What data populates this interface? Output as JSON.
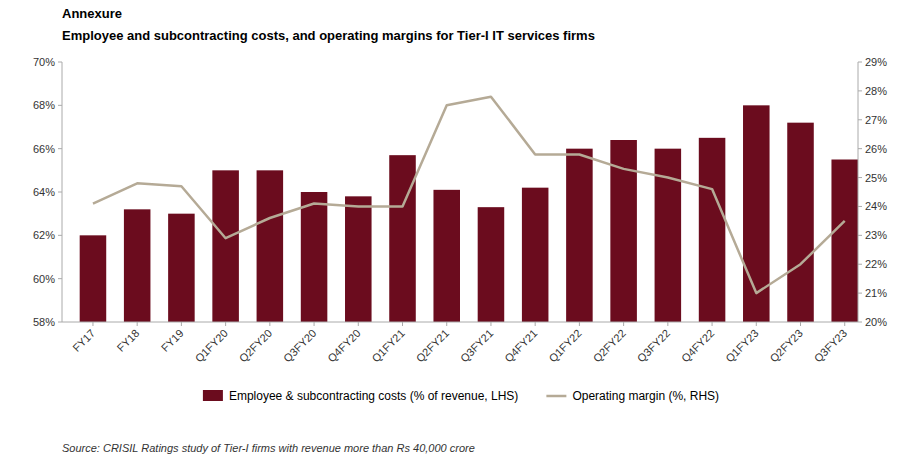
{
  "chart_data": {
    "type": "bar",
    "title": "Employee and subcontracting costs, and operating margins for Tier-I IT services firms",
    "annotations": [
      "Annexure",
      "Source: CRISIL Ratings study of Tier-I firms with revenue more than Rs 40,000 crore"
    ],
    "categories": [
      "FY17",
      "FY18",
      "FY19",
      "Q1FY20",
      "Q2FY20",
      "Q3FY20",
      "Q4FY20",
      "Q1FY21",
      "Q2FY21",
      "Q3FY21",
      "Q4FY21",
      "Q1FY22",
      "Q2FY22",
      "Q3FY22",
      "Q4FY22",
      "Q1FY23",
      "Q2FY23",
      "Q3FY23"
    ],
    "series": [
      {
        "name": "Employee & subcontracting costs (% of revenue, LHS)",
        "type": "bar",
        "color": "#6B0C1E",
        "values": [
          62.0,
          63.2,
          63.0,
          65.0,
          65.0,
          64.0,
          63.8,
          65.7,
          64.1,
          63.3,
          64.2,
          66.0,
          66.4,
          66.0,
          66.5,
          68.0,
          67.2,
          65.5
        ]
      },
      {
        "name": "Operating margin (%, RHS)",
        "type": "line",
        "color": "#B5AA96",
        "axis": "y2",
        "values": [
          24.1,
          24.8,
          24.7,
          22.9,
          23.6,
          24.1,
          24.0,
          24.0,
          27.5,
          27.8,
          25.8,
          25.8,
          25.3,
          25.0,
          24.6,
          21.0,
          22.0,
          23.5
        ]
      }
    ],
    "ylim": [
      58,
      70
    ],
    "yticks": [
      {
        "value": 58,
        "label": "58%"
      },
      {
        "value": 60,
        "label": "60%"
      },
      {
        "value": 62,
        "label": "62%"
      },
      {
        "value": 64,
        "label": "64%"
      },
      {
        "value": 66,
        "label": "66%"
      },
      {
        "value": 68,
        "label": "68%"
      },
      {
        "value": 70,
        "label": "70%"
      }
    ],
    "y2lim": [
      20,
      29
    ],
    "y2ticks": [
      {
        "value": 20,
        "label": "20%"
      },
      {
        "value": 21,
        "label": "21%"
      },
      {
        "value": 22,
        "label": "22%"
      },
      {
        "value": 23,
        "label": "23%"
      },
      {
        "value": 24,
        "label": "24%"
      },
      {
        "value": 25,
        "label": "25%"
      },
      {
        "value": 26,
        "label": "26%"
      },
      {
        "value": 27,
        "label": "27%"
      },
      {
        "value": 28,
        "label": "28%"
      },
      {
        "value": 29,
        "label": "29%"
      }
    ],
    "grid": false,
    "legend": "bottom"
  }
}
